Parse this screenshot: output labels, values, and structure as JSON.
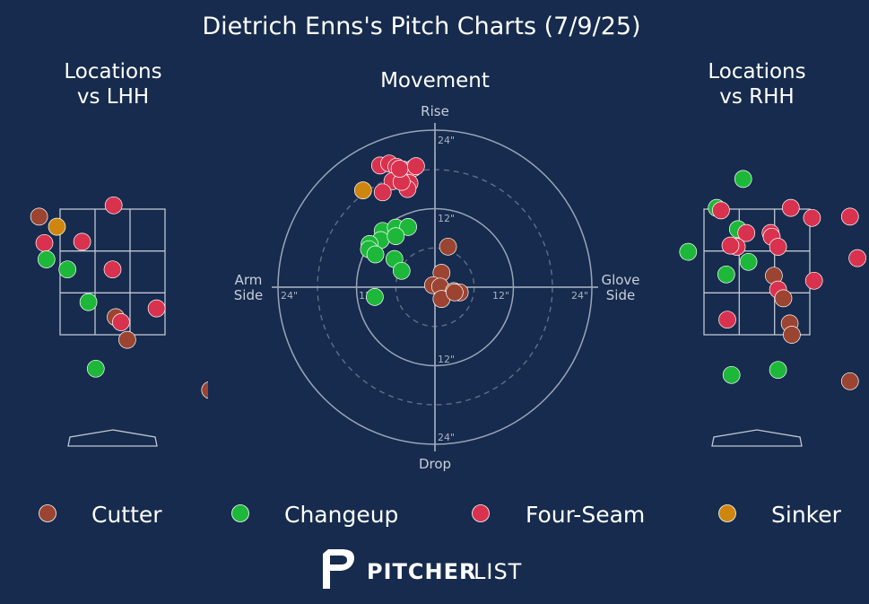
{
  "colors": {
    "background": "#162b4d",
    "Cutter": "#9b4431",
    "Changeup": "#1db83a",
    "Four-Seam": "#d9324f",
    "Sinker": "#cf860f",
    "grid": "#c0c6d2"
  },
  "header": {
    "title": "Dietrich Enns's Pitch Charts (7/9/25)"
  },
  "panels": {
    "lhh_title_line1": "Locations",
    "lhh_title_line2": "vs LHH",
    "movement_title": "Movement",
    "rhh_title_line1": "Locations",
    "rhh_title_line2": "vs RHH"
  },
  "movement_axes": {
    "top": "Rise",
    "bottom": "Drop",
    "left_line1": "Arm",
    "left_line2": "Side",
    "right_line1": "Glove",
    "right_line2": "Side",
    "ring_labels": {
      "top_outer": "24\"",
      "top_inner": "12\"",
      "bottom_inner": "12\"",
      "bottom_outer": "24\"",
      "left_outer": "24\"",
      "left_inner": "12\"",
      "right_inner": "12\"",
      "right_outer": "24\""
    }
  },
  "legend": [
    {
      "name": "Cutter",
      "color_key": "Cutter"
    },
    {
      "name": "Changeup",
      "color_key": "Changeup"
    },
    {
      "name": "Four-Seam",
      "color_key": "Four-Seam"
    },
    {
      "name": "Sinker",
      "color_key": "Sinker"
    }
  ],
  "branding": {
    "bold": "PITCHER",
    "light": "LIST",
    "icon": "pitcherlist-logo-icon"
  },
  "chart_data": [
    {
      "type": "scatter",
      "title": "Locations vs LHH",
      "units": "zone fractions (x: 0 = left edge, 1 = right edge of zone; y: 0 = bottom, 1 = top of zone)",
      "zone_grid": "3x3",
      "points": [
        {
          "pitch": "Cutter",
          "x": -0.2,
          "y": 0.94
        },
        {
          "pitch": "Sinker",
          "x": -0.03,
          "y": 0.86
        },
        {
          "pitch": "Four-Seam",
          "x": 0.51,
          "y": 1.03
        },
        {
          "pitch": "Four-Seam",
          "x": -0.15,
          "y": 0.73
        },
        {
          "pitch": "Four-Seam",
          "x": 0.21,
          "y": 0.74
        },
        {
          "pitch": "Changeup",
          "x": -0.13,
          "y": 0.6
        },
        {
          "pitch": "Changeup",
          "x": 0.07,
          "y": 0.52
        },
        {
          "pitch": "Four-Seam",
          "x": 0.5,
          "y": 0.52
        },
        {
          "pitch": "Changeup",
          "x": 0.27,
          "y": 0.26
        },
        {
          "pitch": "Four-Seam",
          "x": 0.92,
          "y": 0.21
        },
        {
          "pitch": "Cutter",
          "x": 0.53,
          "y": 0.14
        },
        {
          "pitch": "Four-Seam",
          "x": 0.58,
          "y": 0.1
        },
        {
          "pitch": "Cutter",
          "x": 0.64,
          "y": -0.04
        },
        {
          "pitch": "Changeup",
          "x": 0.34,
          "y": -0.27
        },
        {
          "pitch": "Cutter",
          "x": 1.43,
          "y": -0.44
        }
      ]
    },
    {
      "type": "scatter",
      "title": "Movement",
      "units": "inches (x: negative = arm side, positive = glove side; y: positive = rise, negative = drop)",
      "xlim": [
        -24,
        24
      ],
      "ylim": [
        -24,
        24
      ],
      "rings": [
        12,
        24
      ],
      "dashed_rings": [
        6,
        18
      ],
      "points": [
        {
          "pitch": "Sinker",
          "x": -11.0,
          "y": 14.8
        },
        {
          "pitch": "Four-Seam",
          "x": -8.4,
          "y": 18.6
        },
        {
          "pitch": "Four-Seam",
          "x": -7.0,
          "y": 18.9
        },
        {
          "pitch": "Four-Seam",
          "x": -5.9,
          "y": 18.4
        },
        {
          "pitch": "Four-Seam",
          "x": -4.9,
          "y": 18.0
        },
        {
          "pitch": "Four-Seam",
          "x": -3.3,
          "y": 18.2
        },
        {
          "pitch": "Four-Seam",
          "x": -3.9,
          "y": 15.9
        },
        {
          "pitch": "Four-Seam",
          "x": -4.2,
          "y": 15.0
        },
        {
          "pitch": "Four-Seam",
          "x": -6.5,
          "y": 16.2
        },
        {
          "pitch": "Four-Seam",
          "x": -5.1,
          "y": 16.1
        },
        {
          "pitch": "Four-Seam",
          "x": -8.0,
          "y": 14.5
        },
        {
          "pitch": "Four-Seam",
          "x": -5.4,
          "y": 18.1
        },
        {
          "pitch": "Four-Seam",
          "x": -2.9,
          "y": 18.5
        },
        {
          "pitch": "Changeup",
          "x": -8.0,
          "y": 8.6
        },
        {
          "pitch": "Changeup",
          "x": -6.0,
          "y": 9.1
        },
        {
          "pitch": "Changeup",
          "x": -4.1,
          "y": 9.2
        },
        {
          "pitch": "Changeup",
          "x": -8.3,
          "y": 7.2
        },
        {
          "pitch": "Changeup",
          "x": -6.0,
          "y": 7.8
        },
        {
          "pitch": "Changeup",
          "x": -10.0,
          "y": 6.6
        },
        {
          "pitch": "Changeup",
          "x": -10.1,
          "y": 5.8
        },
        {
          "pitch": "Changeup",
          "x": -9.1,
          "y": 5.0
        },
        {
          "pitch": "Changeup",
          "x": -6.2,
          "y": 4.3
        },
        {
          "pitch": "Changeup",
          "x": -5.1,
          "y": 2.5
        },
        {
          "pitch": "Changeup",
          "x": -9.2,
          "y": -1.5
        },
        {
          "pitch": "Cutter",
          "x": 2.0,
          "y": 6.2
        },
        {
          "pitch": "Cutter",
          "x": 1.0,
          "y": 2.2
        },
        {
          "pitch": "Cutter",
          "x": -0.3,
          "y": 0.3
        },
        {
          "pitch": "Cutter",
          "x": 0.8,
          "y": 0.1
        },
        {
          "pitch": "Cutter",
          "x": 2.9,
          "y": -0.6
        },
        {
          "pitch": "Cutter",
          "x": 3.8,
          "y": -0.8
        },
        {
          "pitch": "Cutter",
          "x": 1.0,
          "y": -1.8
        },
        {
          "pitch": "Cutter",
          "x": 3.0,
          "y": -0.8
        }
      ]
    },
    {
      "type": "scatter",
      "title": "Locations vs RHH",
      "units": "zone fractions (x: 0 = left edge, 1 = right edge of zone; y: 0 = bottom, 1 = top of zone)",
      "zone_grid": "3x3",
      "points": [
        {
          "pitch": "Changeup",
          "x": 0.37,
          "y": 1.24
        },
        {
          "pitch": "Changeup",
          "x": 0.12,
          "y": 1.01
        },
        {
          "pitch": "Four-Seam",
          "x": 0.16,
          "y": 0.99
        },
        {
          "pitch": "Four-Seam",
          "x": 0.82,
          "y": 1.01
        },
        {
          "pitch": "Four-Seam",
          "x": 1.02,
          "y": 0.93
        },
        {
          "pitch": "Four-Seam",
          "x": 1.38,
          "y": 0.94
        },
        {
          "pitch": "Changeup",
          "x": 0.32,
          "y": 0.84
        },
        {
          "pitch": "Four-Seam",
          "x": 0.4,
          "y": 0.81
        },
        {
          "pitch": "Four-Seam",
          "x": 0.63,
          "y": 0.81
        },
        {
          "pitch": "Four-Seam",
          "x": 0.64,
          "y": 0.78
        },
        {
          "pitch": "Four-Seam",
          "x": 0.31,
          "y": 0.7
        },
        {
          "pitch": "Four-Seam",
          "x": 0.25,
          "y": 0.71
        },
        {
          "pitch": "Four-Seam",
          "x": 0.7,
          "y": 0.7
        },
        {
          "pitch": "Changeup",
          "x": -0.15,
          "y": 0.66
        },
        {
          "pitch": "Changeup",
          "x": 0.42,
          "y": 0.58
        },
        {
          "pitch": "Changeup",
          "x": 0.21,
          "y": 0.48
        },
        {
          "pitch": "Cutter",
          "x": 0.66,
          "y": 0.47
        },
        {
          "pitch": "Four-Seam",
          "x": 1.04,
          "y": 0.43
        },
        {
          "pitch": "Four-Seam",
          "x": 0.7,
          "y": 0.36
        },
        {
          "pitch": "Cutter",
          "x": 0.75,
          "y": 0.29
        },
        {
          "pitch": "Four-Seam",
          "x": 1.45,
          "y": 0.61
        },
        {
          "pitch": "Four-Seam",
          "x": 0.22,
          "y": 0.12
        },
        {
          "pitch": "Cutter",
          "x": 0.81,
          "y": 0.09
        },
        {
          "pitch": "Cutter",
          "x": 0.83,
          "y": 0.0
        },
        {
          "pitch": "Changeup",
          "x": 0.26,
          "y": -0.32
        },
        {
          "pitch": "Changeup",
          "x": 0.7,
          "y": -0.28
        },
        {
          "pitch": "Cutter",
          "x": 1.38,
          "y": -0.37
        }
      ]
    }
  ]
}
